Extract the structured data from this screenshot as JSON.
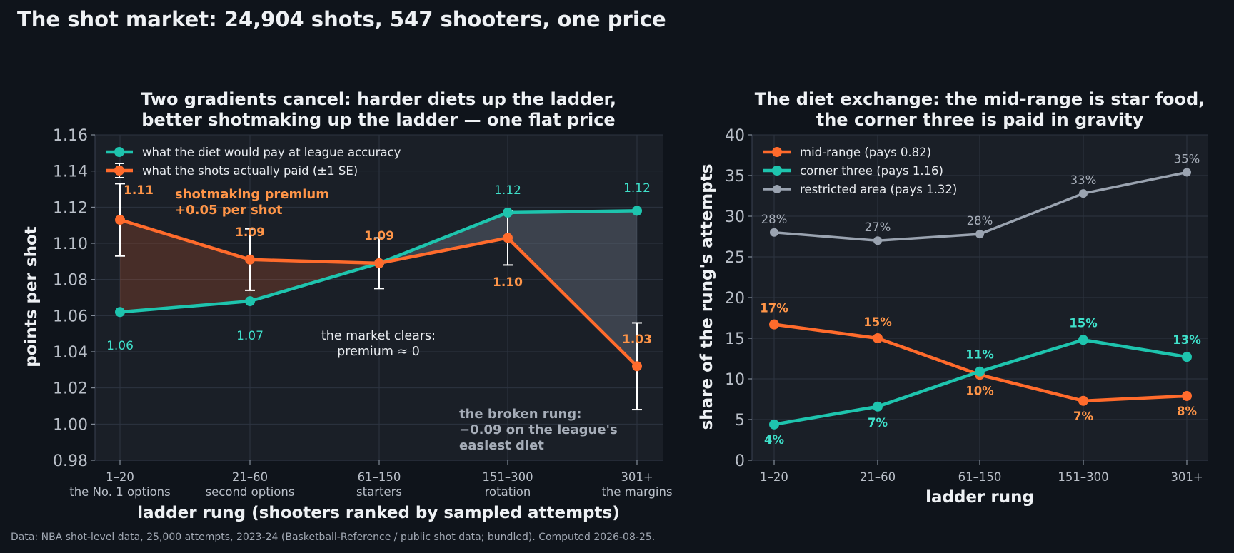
{
  "figure": {
    "suptitle": "The shot market: 24,904 shots, 547 shooters, one price",
    "footnote": "Data: NBA shot-level data, 25,000 attempts, 2023-24 (Basketball-Reference / public shot data; bundled). Computed 2026-08-25."
  },
  "colors": {
    "background": "#0f141b",
    "panel": "#1a1f27",
    "grid": "#2d3441",
    "teal": "#1ec4ae",
    "orange": "#ff6b2c",
    "orange_label": "#ff9548",
    "teal_label": "#3fe0ca",
    "gray": "#9aa3b0"
  },
  "chart_data": [
    {
      "type": "line",
      "title": "Two gradients cancel: harder diets up the ladder,\nbetter shotmaking up the ladder — one flat price",
      "xlabel": "ladder rung (shooters ranked by sampled attempts)",
      "ylabel": "points per shot",
      "categories": [
        "1–20\nthe No. 1 options",
        "21–60\nsecond options",
        "61–150\nstarters",
        "151–300\nrotation",
        "301+\nthe margins"
      ],
      "ylim": [
        0.98,
        1.16
      ],
      "yticks": [
        "0.98",
        "1.00",
        "1.02",
        "1.04",
        "1.06",
        "1.08",
        "1.10",
        "1.12",
        "1.14",
        "1.16"
      ],
      "grid": true,
      "legend_position": "top-left",
      "series": [
        {
          "name": "what the diet would pay at league accuracy",
          "values": [
            1.062,
            1.068,
            1.089,
            1.117,
            1.118
          ],
          "labels": [
            "1.06",
            "1.07",
            "",
            "1.12",
            "1.12"
          ]
        },
        {
          "name": "what the shots actually paid (±1 SE)",
          "values": [
            1.113,
            1.091,
            1.089,
            1.103,
            1.032
          ],
          "err": [
            0.02,
            0.017,
            0.014,
            0.015,
            0.024
          ],
          "labels": [
            "1.11",
            "1.09",
            "1.09",
            "1.10",
            "1.03"
          ]
        }
      ],
      "annotations": {
        "premium": "shotmaking premium\n+0.05 per shot",
        "clears": "the market clears:\npremium ≈ 0",
        "broken": "the broken rung:\n−0.09 on the league's\neasiest diet"
      }
    },
    {
      "type": "line",
      "title": "The diet exchange: the mid-range is star food,\nthe corner three is paid in gravity",
      "xlabel": "ladder rung",
      "ylabel": "share of the rung's attempts",
      "categories": [
        "1–20",
        "21–60",
        "61–150",
        "151–300",
        "301+"
      ],
      "ylim": [
        0,
        40
      ],
      "yticks": [
        "0",
        "5",
        "10",
        "15",
        "20",
        "25",
        "30",
        "35",
        "40"
      ],
      "grid": true,
      "legend_position": "top-left",
      "series": [
        {
          "name": "mid-range (pays 0.82)",
          "values": [
            16.7,
            15.0,
            10.5,
            7.3,
            7.9
          ],
          "labels": [
            "17%",
            "15%",
            "10%",
            "7%",
            "8%"
          ]
        },
        {
          "name": "corner three (pays 1.16)",
          "values": [
            4.4,
            6.6,
            10.9,
            14.8,
            12.7
          ],
          "labels": [
            "4%",
            "7%",
            "11%",
            "15%",
            "13%"
          ]
        },
        {
          "name": "restricted area (pays 1.32)",
          "values": [
            28.0,
            27.0,
            27.8,
            32.8,
            35.4
          ],
          "labels": [
            "28%",
            "27%",
            "28%",
            "33%",
            "35%"
          ]
        }
      ]
    }
  ]
}
